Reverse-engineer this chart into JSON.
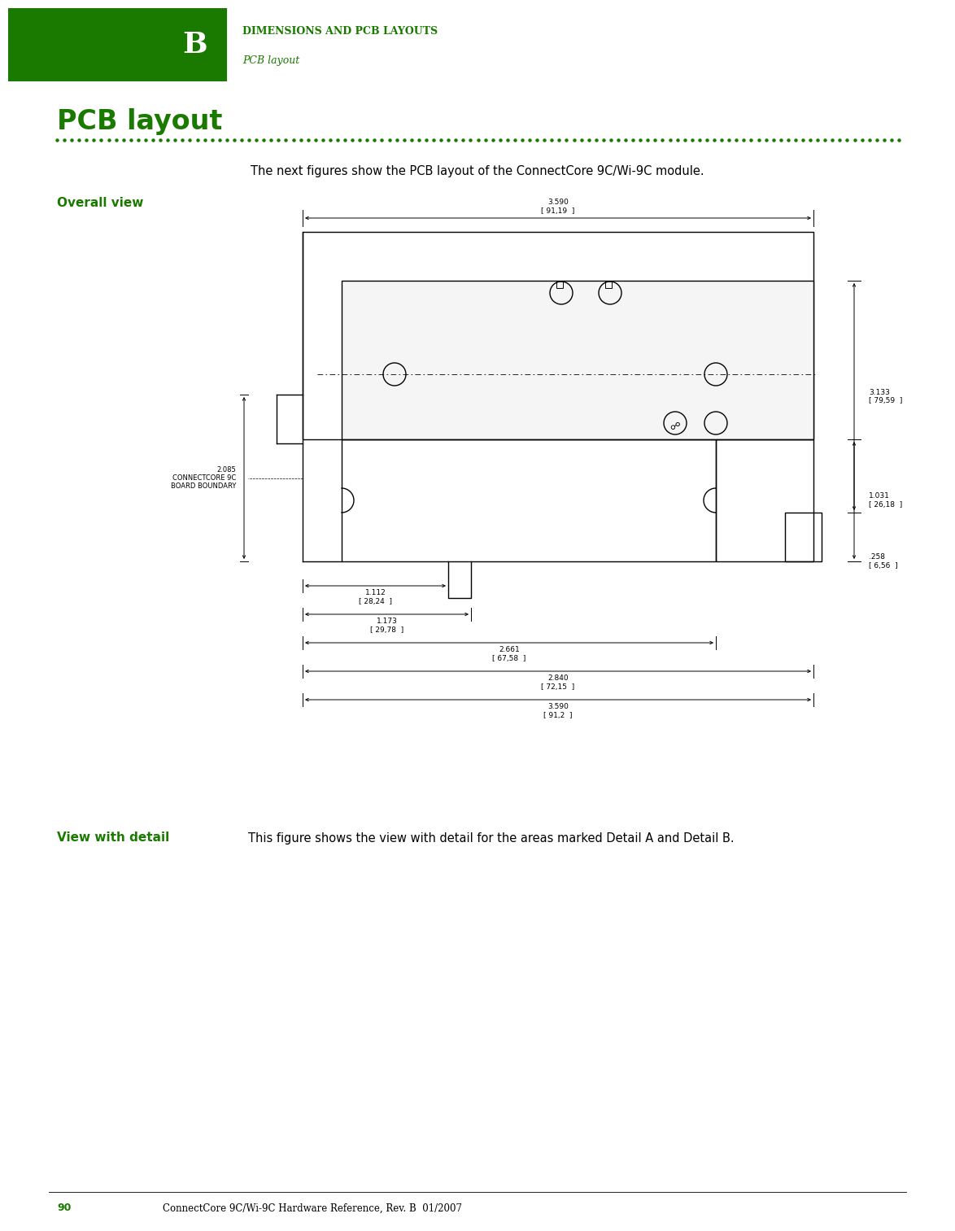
{
  "header_bg_color": "#1a7a00",
  "header_text_color": "#ffffff",
  "header_chapter": "B",
  "header_title": "DIMENSIONS AND PCB LAYOUTS",
  "header_subtitle": "PCB layout",
  "green_color": "#1a7a00",
  "page_bg": "#ffffff",
  "section_title": "PCB layout",
  "intro_text": "The next figures show the PCB layout of the ConnectCore 9C/Wi-9C module.",
  "overall_view_label": "Overall view",
  "view_detail_label": "View with detail",
  "view_detail_text": "This figure shows the view with detail for the areas marked Detail A and Detail B.",
  "footer_page": "90",
  "footer_text": "ConnectCore 9C/Wi-9C Hardware Reference, Rev. B  01/2007",
  "black": "#000000",
  "gray_light": "#e8e8e8"
}
